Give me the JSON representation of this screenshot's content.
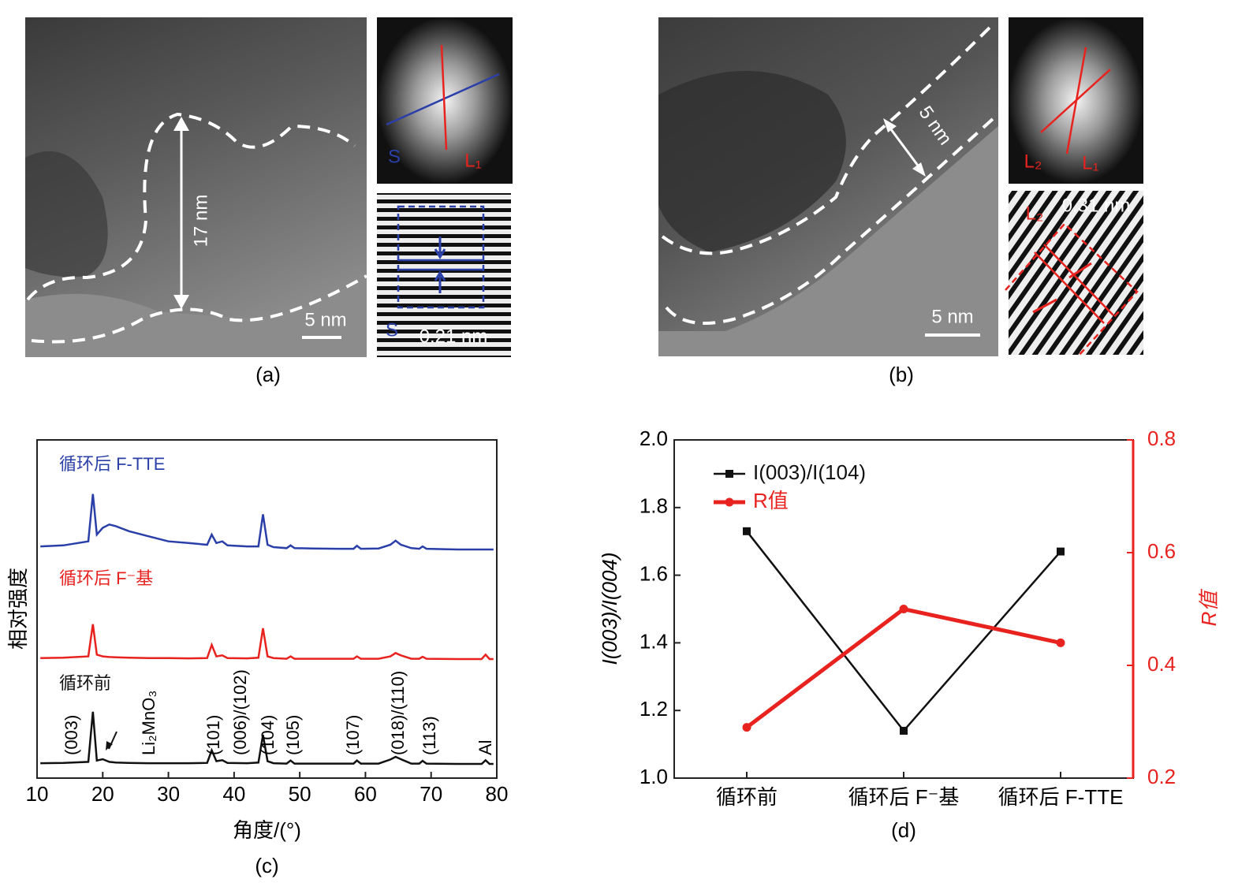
{
  "panels": [
    {
      "caption": "(a)",
      "scale_bar": "5 nm",
      "thickness": "17 nm",
      "fft_labels": [
        "S",
        "L₁"
      ],
      "lattice_labels": [
        "S",
        "0.21 nm"
      ]
    },
    {
      "caption": "(b)",
      "scale_bar": "5 nm",
      "thickness": "5 nm",
      "fft_labels": [
        "L₂",
        "L₁"
      ],
      "lattice_labels": [
        "L₂",
        "0.31 nm"
      ]
    }
  ],
  "chart_data": [
    {
      "type": "line",
      "caption": "(c)",
      "xlabel": "角度/(°)",
      "ylabel": "相对强度",
      "xlim": [
        10,
        80
      ],
      "xticks": [
        10,
        20,
        30,
        40,
        50,
        60,
        70,
        80
      ],
      "ylim": [
        0,
        100
      ],
      "x": [
        10.5,
        14,
        17.8,
        18.5,
        19.1,
        20,
        21,
        22,
        24,
        27,
        30,
        33,
        35.9,
        36.6,
        37.3,
        38.2,
        39,
        42,
        43.7,
        44.4,
        45.1,
        46,
        48,
        48.6,
        49.2,
        52,
        56,
        58.2,
        58.7,
        59.3,
        62,
        63.8,
        64.6,
        65.4,
        67,
        68.2,
        68.7,
        69.3,
        74,
        77.7,
        78.3,
        78.9,
        79.5
      ],
      "series": [
        {
          "name": "循环后 F-TTE",
          "color": "#2b3fa8",
          "values": [
            68.5,
            68.8,
            70,
            84,
            72,
            74,
            75,
            74.5,
            73,
            71.5,
            70,
            69.5,
            69,
            72,
            69.5,
            70,
            68.8,
            68.5,
            68.5,
            78,
            69,
            68.3,
            68,
            68.8,
            68,
            67.9,
            67.8,
            67.8,
            68.7,
            67.8,
            67.9,
            69,
            70.2,
            69,
            68,
            67.8,
            68.5,
            67.8,
            67.6,
            67.6,
            67.6,
            67.6,
            67.6
          ]
        },
        {
          "name": "循环后 F⁻基",
          "color": "#e8231f",
          "values": [
            35.5,
            35.6,
            36,
            45.5,
            36.5,
            36,
            35.8,
            35.7,
            35.6,
            35.5,
            35.5,
            35.4,
            35.5,
            39.4,
            36,
            36.3,
            35.5,
            35.4,
            35.6,
            44.3,
            36,
            35.5,
            35.3,
            36,
            35.3,
            35.3,
            35.3,
            35.3,
            36,
            35.3,
            35.3,
            36,
            37,
            36.3,
            35.3,
            35.3,
            35.9,
            35.3,
            35.2,
            35.2,
            36.5,
            35.2,
            35.2
          ]
        },
        {
          "name": "循环前",
          "color": "#111111",
          "values": [
            4.4,
            4.5,
            4.8,
            19.6,
            5.2,
            5.6,
            4.8,
            4.6,
            4.5,
            4.4,
            4.4,
            4.4,
            4.5,
            8.2,
            5,
            5.3,
            4.5,
            4.4,
            4.6,
            12.8,
            5,
            4.4,
            4.3,
            5.2,
            4.3,
            4.3,
            4.3,
            4.3,
            5.2,
            4.3,
            4.3,
            5.5,
            6.3,
            5.6,
            4.3,
            4.3,
            5.1,
            4.3,
            4.2,
            4.2,
            5.3,
            4.2,
            4.2
          ]
        }
      ],
      "annotations": [
        "(003)",
        "Li₂MnO₃",
        "(101)",
        "(006)/(102)",
        "(104)",
        "(105)",
        "(107)",
        "(018)/(110)",
        "(113)",
        "Al"
      ]
    },
    {
      "type": "line",
      "caption": "(d)",
      "ylabel": "I(003)/I(004)",
      "y2label": "R值",
      "categories": [
        "循环前",
        "循环后 F⁻基",
        "循环后 F-TTE"
      ],
      "ylim": [
        1,
        2
      ],
      "yticks": [
        {
          "value": 1,
          "label": "1.0"
        },
        1.2,
        1.4,
        1.6,
        1.8,
        {
          "value": 2,
          "label": "2.0"
        }
      ],
      "y2lim": [
        0.2,
        0.8
      ],
      "y2ticks": [
        0.2,
        0.4,
        0.6,
        0.8
      ],
      "legend": "upper left",
      "series": [
        {
          "name": "I(003)/I(104)",
          "color": "#111111",
          "values": [
            1.73,
            1.14,
            1.67
          ]
        },
        {
          "name": "R值",
          "color": "#e8231f",
          "axis": "y2",
          "values": [
            0.29,
            0.5,
            0.44
          ]
        }
      ]
    }
  ]
}
